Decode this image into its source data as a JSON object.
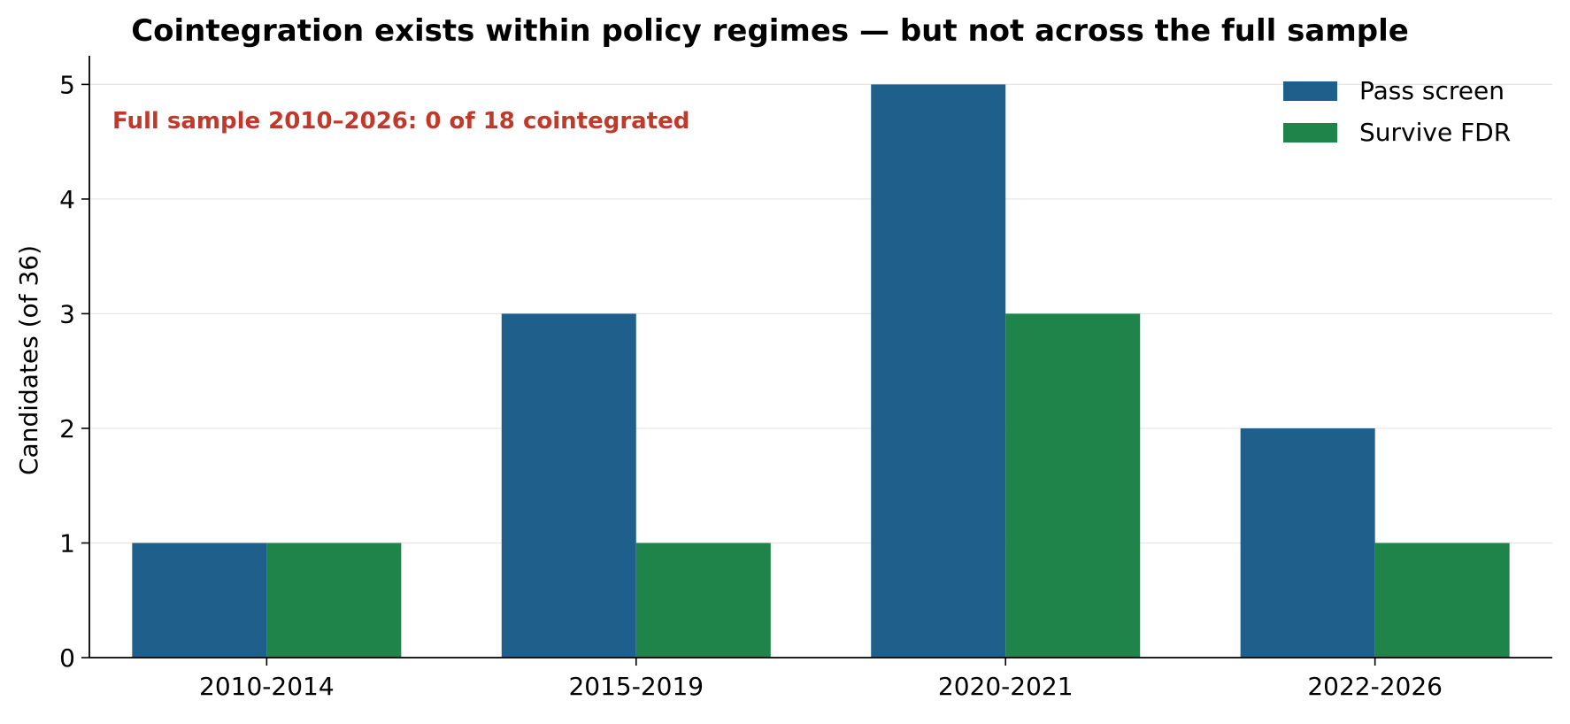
{
  "chart_data": {
    "type": "bar",
    "title": "Cointegration exists within policy regimes — but not across the full sample",
    "xlabel": "",
    "ylabel": "Candidates (of 36)",
    "categories": [
      "2010-2014",
      "2015-2019",
      "2020-2021",
      "2022-2026"
    ],
    "series": [
      {
        "name": "Pass screen",
        "values": [
          1,
          3,
          5,
          2
        ],
        "color": "#1f5f8b"
      },
      {
        "name": "Survive FDR",
        "values": [
          1,
          1,
          3,
          1
        ],
        "color": "#1e8449"
      }
    ],
    "ylim": [
      0,
      5.25
    ],
    "yticks": [
      0,
      1,
      2,
      3,
      4,
      5
    ],
    "grid": "horizontal",
    "legend_position": "top-right",
    "annotation": {
      "text": "Full sample 2010–2026:  0 of 18 cointegrated",
      "color": "#c0392b"
    }
  }
}
